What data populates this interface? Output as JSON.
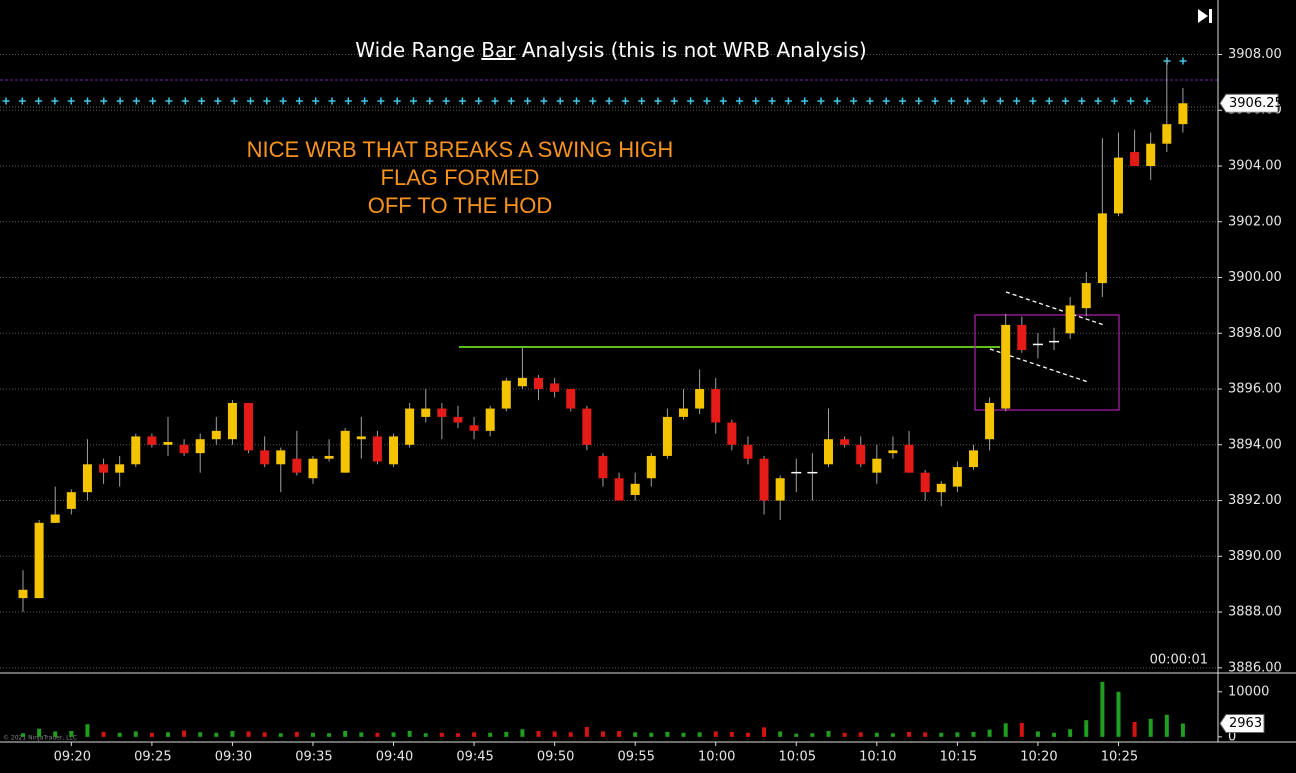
{
  "chart_data": {
    "type": "candlestick",
    "title_parts": [
      "Wide Range",
      "Bar",
      "Analysis (this is not WRB Analysis)"
    ],
    "annotation": [
      "NICE WRB THAT BREAKS A SWING HIGH",
      "FLAG FORMED",
      "OFF TO THE HOD"
    ],
    "timer": "00:00:01",
    "copyright": "© 2021 NinjaTrader, LLC",
    "categories": [
      null,
      null,
      null,
      "09:20",
      null,
      null,
      null,
      null,
      "09:25",
      null,
      null,
      null,
      null,
      "09:30",
      null,
      null,
      null,
      null,
      "09:35",
      null,
      null,
      null,
      null,
      "09:40",
      null,
      null,
      null,
      null,
      "09:45",
      null,
      null,
      null,
      null,
      "09:50",
      null,
      null,
      null,
      null,
      "09:55",
      null,
      null,
      null,
      null,
      "10:00",
      null,
      null,
      null,
      null,
      "10:05",
      null,
      null,
      null,
      null,
      "10:10",
      null,
      null,
      null,
      null,
      "10:15",
      null,
      null,
      null,
      null,
      "10:20",
      null,
      null,
      null,
      null,
      "10:25",
      null,
      null,
      null,
      null
    ],
    "open": [
      3888.5,
      3888.5,
      3891.2,
      3891.7,
      3892.3,
      3893.3,
      3893.0,
      3893.3,
      3894.3,
      3894.0,
      3894.0,
      3893.7,
      3894.2,
      3894.2,
      3895.5,
      3893.8,
      3893.3,
      3893.5,
      3892.8,
      3893.5,
      3893.0,
      3894.2,
      3894.3,
      3893.3,
      3894.0,
      3895.0,
      3895.3,
      3895.0,
      3894.7,
      3894.5,
      3895.3,
      3896.1,
      3896.4,
      3896.2,
      3896.0,
      3895.3,
      3893.6,
      3892.8,
      3892.2,
      3892.8,
      3893.6,
      3895.0,
      3895.3,
      3896.0,
      3894.8,
      3894.0,
      3893.5,
      3892.0,
      3893.0,
      3893.0,
      3893.3,
      3894.2,
      3894.0,
      3893.0,
      3893.7,
      3894.0,
      3893.0,
      3892.3,
      3892.5,
      3893.2,
      3894.2,
      3895.3,
      3898.3,
      3897.6,
      3897.7,
      3898.0,
      3898.9,
      3899.8,
      3902.3,
      3904.5,
      3904.0,
      3904.8,
      3905.5
    ],
    "high": [
      3889.5,
      3891.3,
      3892.5,
      3892.4,
      3894.2,
      3893.5,
      3893.6,
      3894.4,
      3894.4,
      3895.0,
      3894.2,
      3894.4,
      3895.0,
      3895.6,
      3895.5,
      3894.3,
      3893.9,
      3894.5,
      3893.6,
      3894.2,
      3894.6,
      3895.0,
      3894.5,
      3894.4,
      3895.5,
      3896.0,
      3895.5,
      3895.4,
      3895.0,
      3895.4,
      3896.4,
      3897.5,
      3896.5,
      3896.4,
      3896.0,
      3895.4,
      3893.7,
      3893.0,
      3893.0,
      3893.7,
      3895.3,
      3896.0,
      3896.7,
      3896.4,
      3894.9,
      3894.3,
      3893.6,
      3892.9,
      3893.5,
      3893.7,
      3895.3,
      3894.3,
      3894.3,
      3894.0,
      3894.3,
      3894.5,
      3893.1,
      3892.7,
      3893.4,
      3894.0,
      3895.7,
      3898.7,
      3898.6,
      3898.0,
      3898.2,
      3899.3,
      3900.2,
      3905.0,
      3905.2,
      3905.3,
      3905.2,
      3907.8,
      3906.8
    ],
    "low": [
      3888.0,
      3888.5,
      3891.2,
      3891.5,
      3892.0,
      3892.6,
      3892.5,
      3893.2,
      3893.9,
      3893.6,
      3893.6,
      3893.0,
      3894.0,
      3894.0,
      3893.7,
      3893.2,
      3892.3,
      3892.9,
      3892.6,
      3893.4,
      3893.0,
      3893.5,
      3893.3,
      3893.2,
      3893.9,
      3894.8,
      3894.2,
      3894.6,
      3894.2,
      3894.3,
      3895.2,
      3896.0,
      3895.6,
      3895.7,
      3895.2,
      3893.8,
      3892.5,
      3892.0,
      3892.0,
      3892.5,
      3893.5,
      3894.9,
      3895.1,
      3894.4,
      3893.8,
      3893.3,
      3891.5,
      3891.3,
      3892.3,
      3892.0,
      3893.2,
      3893.9,
      3893.2,
      3892.6,
      3893.5,
      3893.0,
      3892.0,
      3891.8,
      3892.3,
      3893.1,
      3893.8,
      3895.2,
      3897.3,
      3897.1,
      3897.4,
      3897.8,
      3898.6,
      3899.3,
      3902.2,
      3904.0,
      3903.5,
      3904.5,
      3905.2
    ],
    "close": [
      3888.8,
      3891.2,
      3891.5,
      3892.3,
      3893.3,
      3893.0,
      3893.3,
      3894.3,
      3894.0,
      3894.1,
      3893.7,
      3894.2,
      3894.5,
      3895.5,
      3893.8,
      3893.3,
      3893.8,
      3893.0,
      3893.5,
      3893.6,
      3894.5,
      3894.3,
      3893.4,
      3894.3,
      3895.3,
      3895.3,
      3895.0,
      3894.8,
      3894.5,
      3895.3,
      3896.3,
      3896.4,
      3896.0,
      3895.9,
      3895.3,
      3894.0,
      3892.8,
      3892.0,
      3892.6,
      3893.6,
      3895.0,
      3895.3,
      3896.0,
      3894.8,
      3894.0,
      3893.5,
      3892.0,
      3892.8,
      3893.0,
      3893.0,
      3894.2,
      3894.0,
      3893.3,
      3893.5,
      3893.8,
      3893.0,
      3892.3,
      3892.6,
      3893.2,
      3893.8,
      3895.5,
      3898.3,
      3897.4,
      3897.6,
      3897.7,
      3899.0,
      3899.8,
      3902.3,
      3904.3,
      3904.0,
      3904.8,
      3905.5,
      3906.25
    ],
    "colors": {
      "up": "#f5c400",
      "down": "#e41b17",
      "doji": "#ffffff",
      "wick": "#a0a0a0"
    },
    "ylim": [
      3885.85,
      3908.95
    ],
    "yticks": [
      {
        "value": 3886,
        "label": "3886.00"
      },
      {
        "value": 3888,
        "label": "3888.00"
      },
      {
        "value": 3890,
        "label": "3890.00"
      },
      {
        "value": 3892,
        "label": "3892.00"
      },
      {
        "value": 3894,
        "label": "3894.00"
      },
      {
        "value": 3896,
        "label": "3896.00"
      },
      {
        "value": 3898,
        "label": "3898.00"
      },
      {
        "value": 3900,
        "label": "3900.00"
      },
      {
        "value": 3902,
        "label": "3902.00"
      },
      {
        "value": 3904,
        "label": "3904.00"
      },
      {
        "value": 3906,
        "label": "3906.00"
      },
      {
        "value": 3908,
        "label": "3908.00"
      }
    ],
    "grid": true,
    "volume": {
      "values": [
        800,
        1800,
        1200,
        1300,
        2800,
        1100,
        900,
        1200,
        900,
        1000,
        1400,
        1000,
        900,
        1300,
        1200,
        1000,
        800,
        1100,
        900,
        800,
        1300,
        1000,
        900,
        1000,
        1300,
        800,
        900,
        800,
        1000,
        900,
        1100,
        1700,
        1300,
        1200,
        1000,
        2200,
        1200,
        1300,
        1000,
        900,
        1100,
        900,
        1000,
        1200,
        1100,
        900,
        2100,
        1200,
        700,
        800,
        1300,
        900,
        1000,
        900,
        800,
        1100,
        1000,
        900,
        1000,
        1100,
        1600,
        3000,
        3100,
        1200,
        900,
        1700,
        3700,
        12200,
        10000,
        3300,
        4000,
        4900,
        2963
      ],
      "colors": {
        "up": "#1f9e1f",
        "down": "#d41414"
      },
      "ylim": [
        -700,
        13500
      ],
      "yticks": [
        0,
        10000
      ]
    }
  }
}
